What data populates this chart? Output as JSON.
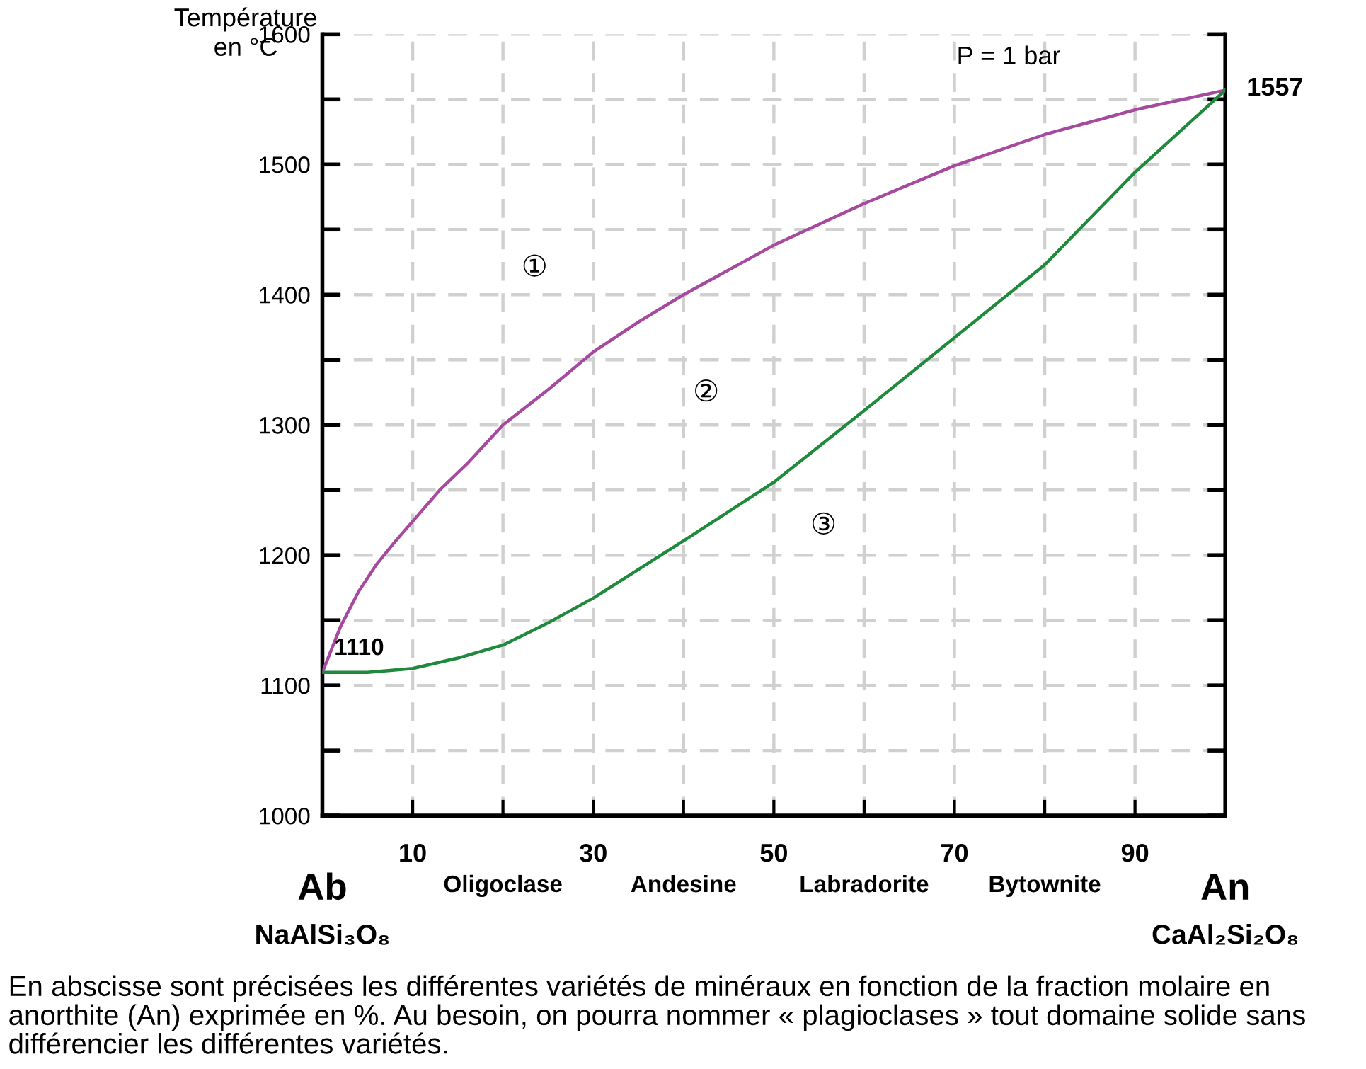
{
  "chart_data": {
    "type": "line",
    "ylabel": "Température\nen °C",
    "series": [
      {
        "color": "#a54a9e",
        "x": [
          0,
          2,
          4,
          6,
          8,
          10,
          13,
          16,
          20,
          25,
          30,
          35,
          40,
          50,
          60,
          70,
          80,
          90,
          100
        ],
        "values": [
          1110,
          1145,
          1172,
          1193,
          1210,
          1226,
          1250,
          1270,
          1300,
          1327,
          1356,
          1379,
          1400,
          1438,
          1470,
          1499,
          1523,
          1542,
          1557
        ]
      },
      {
        "color": "#1f8a3c",
        "x": [
          0,
          2,
          5,
          10,
          15,
          20,
          25,
          30,
          40,
          50,
          60,
          70,
          80,
          90,
          100
        ],
        "values": [
          1110,
          1110,
          1110,
          1113,
          1121,
          1131,
          1148,
          1167,
          1211,
          1256,
          1311,
          1367,
          1423,
          1494,
          1557
        ]
      }
    ],
    "xlim": [
      0,
      100
    ],
    "ylim": [
      1000,
      1600
    ],
    "xticks": [
      {
        "value": 0,
        "label": null
      },
      10,
      {
        "value": 20,
        "label": null
      },
      30,
      {
        "value": 40,
        "label": null
      },
      50,
      {
        "value": 60,
        "label": null
      },
      70,
      {
        "value": 80,
        "label": null
      },
      90,
      {
        "value": 100,
        "label": null
      }
    ],
    "yticks": [
      1000,
      {
        "value": 1050,
        "label": null
      },
      1100,
      {
        "value": 1150,
        "label": null
      },
      1200,
      {
        "value": 1250,
        "label": null
      },
      1300,
      {
        "value": 1350,
        "label": null
      },
      1400,
      {
        "value": 1450,
        "label": null
      },
      1500,
      {
        "value": 1550,
        "label": null
      },
      1600
    ],
    "grid": true,
    "line_style": "solid",
    "marker": "none",
    "annotations": [
      "①",
      "②",
      "③",
      "P = 1 bar",
      "Ab",
      "NaAlSi₃O₈",
      "An",
      "CaAl₂Si₂O₈",
      "Oligoclase",
      "Andesine",
      "Labradorite",
      "Bytownite",
      "1557",
      {
        "text": "1110",
        "x": 0,
        "y": 1110
      },
      "En abscisse sont précisées les différentes variétés de minéraux en fonction de la fraction molaire en anorthite (An) exprimée en %. Au besoin, on pourra nommer « plagioclases » tout domaine solide sans différencier les différentes variétés."
    ]
  }
}
